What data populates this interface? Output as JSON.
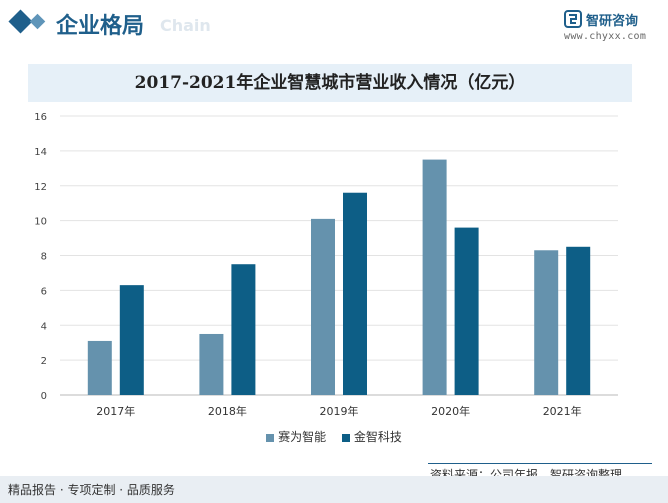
{
  "header": {
    "section_title": "企业格局",
    "title_ghost": "Chain",
    "logo_name": "智研咨询",
    "logo_url": "www.chyxx.com"
  },
  "colors": {
    "brand": "#1f5f8b",
    "series_light": "#6592ad",
    "series_dark": "#0d5e86",
    "title_bar_bg": "#e6f0f8"
  },
  "chart_data": {
    "type": "bar",
    "title": "2017-2021年企业智慧城市营业收入情况（亿元）",
    "categories": [
      "2017年",
      "2018年",
      "2019年",
      "2020年",
      "2021年"
    ],
    "series": [
      {
        "name": "赛为智能",
        "values": [
          3.1,
          3.5,
          10.1,
          13.5,
          8.3
        ],
        "color": "#6592ad"
      },
      {
        "name": "金智科技",
        "values": [
          6.3,
          7.5,
          11.6,
          9.6,
          8.5
        ],
        "color": "#0d5e86"
      }
    ],
    "ylim": [
      0,
      16
    ],
    "yticks": [
      "0",
      "2",
      "4",
      "6",
      "8",
      "10",
      "12",
      "14",
      "16"
    ],
    "grid": true,
    "legend_position": "bottom"
  },
  "footer": {
    "source": "资料来源：公司年报、智研咨询整理",
    "tagline": "精品报告 · 专项定制 · 品质服务"
  }
}
